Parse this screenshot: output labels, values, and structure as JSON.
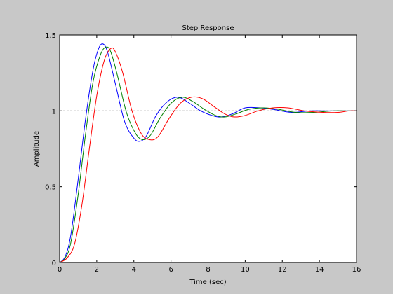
{
  "chart_data": {
    "type": "line",
    "title": "Step Response",
    "xlabel": "Time (sec)",
    "ylabel": "Amplitude",
    "xlim": [
      0,
      16
    ],
    "ylim": [
      0,
      1.5
    ],
    "x_ticks": [
      0,
      2,
      4,
      6,
      8,
      10,
      12,
      14,
      16
    ],
    "y_ticks": [
      0,
      0.5,
      1,
      1.5
    ],
    "x_tick_labels": [
      "0",
      "2",
      "4",
      "6",
      "8",
      "10",
      "12",
      "14",
      "16"
    ],
    "y_tick_labels": [
      "0",
      "0.5",
      "1",
      "1.5"
    ],
    "grid": false,
    "reference_line": {
      "y": 1,
      "style": "dashed",
      "color": "#333333"
    },
    "series": [
      {
        "color": "#0000ff",
        "x": [
          0,
          0.3,
          0.6,
          1.0,
          1.4,
          1.8,
          2.1,
          2.35,
          2.6,
          3.0,
          3.5,
          4.0,
          4.35,
          4.7,
          5.2,
          5.8,
          6.4,
          7.0,
          7.6,
          8.2,
          8.7,
          9.3,
          10.0,
          10.8,
          11.5,
          12.5,
          13.5,
          14.5,
          15.5,
          16.0
        ],
        "y": [
          0,
          0.04,
          0.18,
          0.55,
          0.95,
          1.27,
          1.41,
          1.44,
          1.38,
          1.18,
          0.93,
          0.82,
          0.8,
          0.84,
          0.97,
          1.06,
          1.09,
          1.05,
          1.0,
          0.97,
          0.96,
          0.98,
          1.02,
          1.02,
          1.01,
          0.99,
          1.0,
          1.0,
          1.0,
          1.0
        ]
      },
      {
        "color": "#008000",
        "x": [
          0,
          0.3,
          0.6,
          1.0,
          1.4,
          1.8,
          2.2,
          2.5,
          2.75,
          3.1,
          3.6,
          4.1,
          4.5,
          4.9,
          5.4,
          6.0,
          6.6,
          7.2,
          7.8,
          8.4,
          8.9,
          9.5,
          10.2,
          11.0,
          11.8,
          12.7,
          13.7,
          14.7,
          15.5,
          16.0
        ],
        "y": [
          0,
          0.03,
          0.13,
          0.45,
          0.85,
          1.19,
          1.37,
          1.42,
          1.39,
          1.24,
          0.99,
          0.85,
          0.81,
          0.84,
          0.95,
          1.05,
          1.09,
          1.06,
          1.01,
          0.97,
          0.96,
          0.98,
          1.01,
          1.02,
          1.01,
          0.99,
          0.99,
          1.0,
          1.0,
          1.0
        ]
      },
      {
        "color": "#ff0000",
        "x": [
          0,
          0.4,
          0.8,
          1.2,
          1.6,
          2.0,
          2.4,
          2.75,
          3.0,
          3.4,
          3.9,
          4.4,
          4.85,
          5.3,
          5.9,
          6.5,
          7.1,
          7.7,
          8.3,
          8.9,
          9.4,
          10.0,
          10.7,
          11.5,
          12.3,
          13.2,
          14.2,
          15.0,
          15.6,
          16.0
        ],
        "y": [
          0,
          0.03,
          0.12,
          0.38,
          0.75,
          1.1,
          1.33,
          1.41,
          1.39,
          1.25,
          1.0,
          0.85,
          0.81,
          0.83,
          0.95,
          1.05,
          1.09,
          1.08,
          1.03,
          0.98,
          0.96,
          0.97,
          1.0,
          1.02,
          1.02,
          1.0,
          0.99,
          0.99,
          1.0,
          1.0
        ]
      }
    ]
  }
}
